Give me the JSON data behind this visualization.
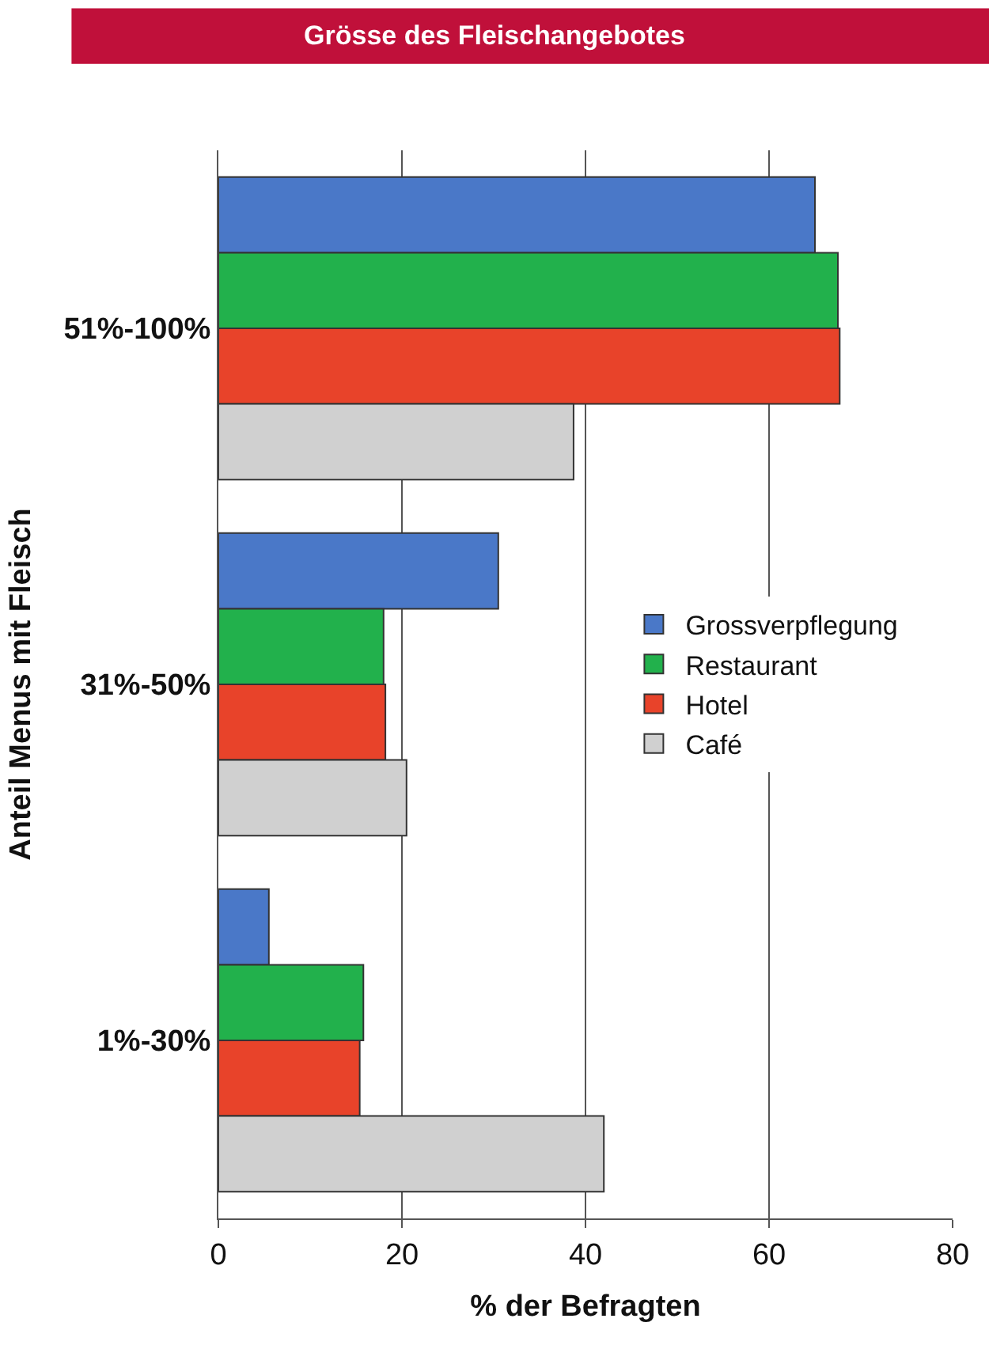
{
  "chart_data": {
    "type": "bar",
    "orientation": "horizontal",
    "title": "Grösse des Fleischangebotes",
    "xlabel": "% der Befragten",
    "ylabel": "Anteil Menus mit Fleisch",
    "categories": [
      "51%-100%",
      "31%-50%",
      "1%-30%"
    ],
    "series": [
      {
        "name": "Grossverpflegung",
        "color": "#4a78c8",
        "values": [
          65,
          30.5,
          5.5
        ]
      },
      {
        "name": "Restaurant",
        "color": "#22b14c",
        "values": [
          67.5,
          18,
          15.8
        ]
      },
      {
        "name": "Hotel",
        "color": "#e8432a",
        "values": [
          67.7,
          18.2,
          15.4
        ]
      },
      {
        "name": "Café",
        "color": "#d0d0d0",
        "values": [
          38.7,
          20.5,
          42
        ]
      }
    ],
    "xlim": [
      0,
      80
    ],
    "xticks": [
      0,
      20,
      40,
      60,
      80
    ],
    "grid": "x",
    "legend": "right"
  }
}
